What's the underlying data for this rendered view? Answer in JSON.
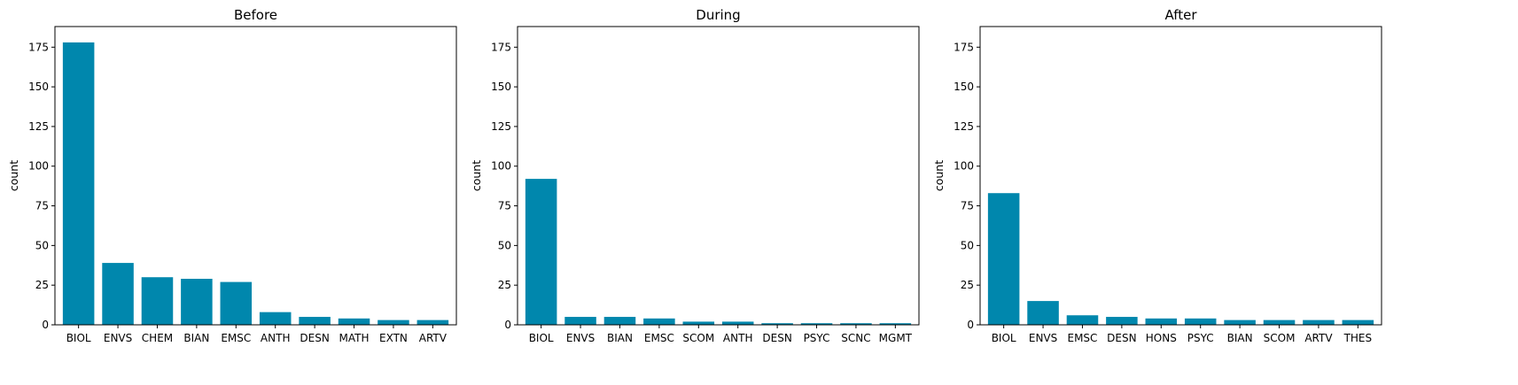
{
  "chart_data": [
    {
      "type": "bar",
      "title": "Before",
      "ylabel": "count",
      "xlabel": "",
      "ylim": [
        0,
        188
      ],
      "yticks": [
        0,
        25,
        50,
        75,
        100,
        125,
        150,
        175
      ],
      "bar_color": "#0087ad",
      "categories": [
        "BIOL",
        "ENVS",
        "CHEM",
        "BIAN",
        "EMSC",
        "ANTH",
        "DESN",
        "MATH",
        "EXTN",
        "ARTV"
      ],
      "values": [
        178,
        39,
        30,
        29,
        27,
        8,
        5,
        4,
        3,
        3
      ]
    },
    {
      "type": "bar",
      "title": "During",
      "ylabel": "count",
      "xlabel": "",
      "ylim": [
        0,
        188
      ],
      "yticks": [
        0,
        25,
        50,
        75,
        100,
        125,
        150,
        175
      ],
      "bar_color": "#0087ad",
      "categories": [
        "BIOL",
        "ENVS",
        "BIAN",
        "EMSC",
        "SCOM",
        "ANTH",
        "DESN",
        "PSYC",
        "SCNC",
        "MGMT"
      ],
      "values": [
        92,
        5,
        5,
        4,
        2,
        2,
        1,
        1,
        1,
        1
      ]
    },
    {
      "type": "bar",
      "title": "After",
      "ylabel": "count",
      "xlabel": "",
      "ylim": [
        0,
        188
      ],
      "yticks": [
        0,
        25,
        50,
        75,
        100,
        125,
        150,
        175
      ],
      "bar_color": "#0087ad",
      "categories": [
        "BIOL",
        "ENVS",
        "EMSC",
        "DESN",
        "HONS",
        "PSYC",
        "BIAN",
        "SCOM",
        "ARTV",
        "THES"
      ],
      "values": [
        83,
        15,
        6,
        5,
        4,
        4,
        3,
        3,
        3,
        3
      ]
    }
  ]
}
